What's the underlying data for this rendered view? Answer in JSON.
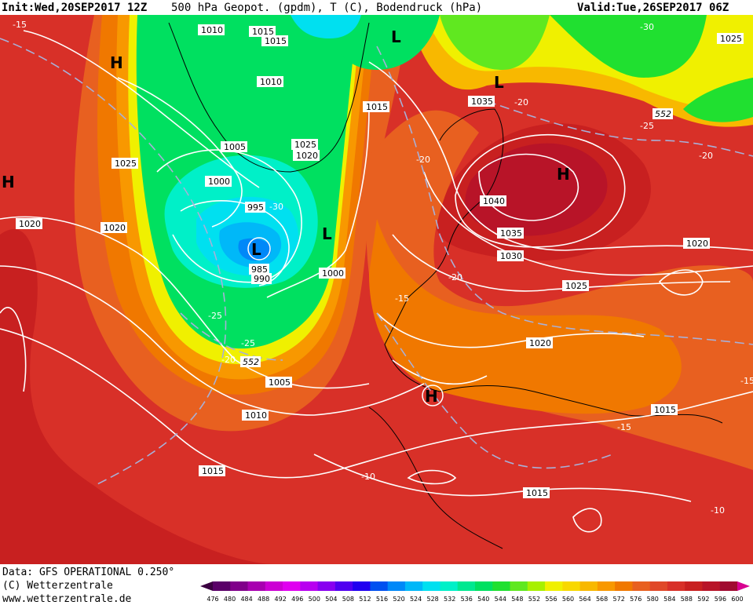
{
  "header": {
    "init_label": "Init:",
    "init_value": "Wed,20SEP2017 12Z",
    "product": "500 hPa Geopot. (gpdm), T (C), Bodendruck (hPa)",
    "valid_label": "Valid:",
    "valid_value": "Tue,26SEP2017 06Z"
  },
  "footer": {
    "data_line": "Data: GFS OPERATIONAL 0.250°",
    "copyright": "(C) Wetterzentrale",
    "website": "www.wetterzentrale.de"
  },
  "colorbar": {
    "ticks": [
      "476",
      "480",
      "484",
      "488",
      "492",
      "496",
      "500",
      "504",
      "508",
      "512",
      "516",
      "520",
      "524",
      "528",
      "532",
      "536",
      "540",
      "544",
      "548",
      "552",
      "556",
      "560",
      "564",
      "568",
      "572",
      "576",
      "580",
      "584",
      "588",
      "592",
      "596",
      "600"
    ],
    "colors": [
      "#3a0040",
      "#5a0068",
      "#80008a",
      "#a800b0",
      "#cc00d4",
      "#e000f0",
      "#b800f0",
      "#8800f0",
      "#5000f0",
      "#2000f0",
      "#0050f0",
      "#0088f8",
      "#00b8f8",
      "#00e0f0",
      "#00f0c8",
      "#00e890",
      "#00e060",
      "#20e030",
      "#60e820",
      "#a8f000",
      "#f0f000",
      "#f8d800",
      "#f8b800",
      "#f89800",
      "#f07800",
      "#e86020",
      "#e04828",
      "#d83028",
      "#c82020",
      "#b81428",
      "#a00a30",
      "#d80090"
    ]
  },
  "map": {
    "colors": {
      "hot": "#b81428",
      "red": "#d83028",
      "redorange": "#e04828",
      "orange": "#e86020",
      "orange2": "#f07800",
      "amber": "#f89800",
      "gold": "#f8b800",
      "yellow": "#f0f000",
      "lime": "#20e030",
      "green": "#00e060",
      "teal": "#00f0c8",
      "cyan": "#00b8f8",
      "blue": "#0050f0"
    },
    "highs_lows": [
      {
        "id": "high-west-canada",
        "letter": "H"
      },
      {
        "id": "high-far-west",
        "letter": "H"
      },
      {
        "id": "low-greenland-north",
        "letter": "L"
      },
      {
        "id": "low-norway-sea",
        "letter": "L"
      },
      {
        "id": "high-scandinavia",
        "letter": "H"
      },
      {
        "id": "low-central-atlantic",
        "letter": "L"
      },
      {
        "id": "low-east-greenland",
        "letter": "L"
      },
      {
        "id": "high-biscay",
        "letter": "H"
      }
    ],
    "pressure_labels": [
      "1010",
      "1015",
      "1015",
      "1010",
      "1025",
      "1020",
      "1005",
      "1000",
      "995",
      "985",
      "990",
      "1000",
      "1015",
      "1035",
      "1040",
      "1035",
      "1030",
      "1025",
      "1020",
      "1020",
      "1025",
      "1020",
      "1020",
      "1005",
      "1010",
      "1015",
      "1015",
      "1015",
      "552",
      "552"
    ],
    "temp_labels": [
      "-15",
      "-30",
      "-30",
      "-20",
      "-25",
      "-20",
      "-20",
      "-25",
      "-25",
      "-20",
      "-20",
      "-15",
      "-15",
      "-10",
      "-15",
      "-10"
    ]
  }
}
